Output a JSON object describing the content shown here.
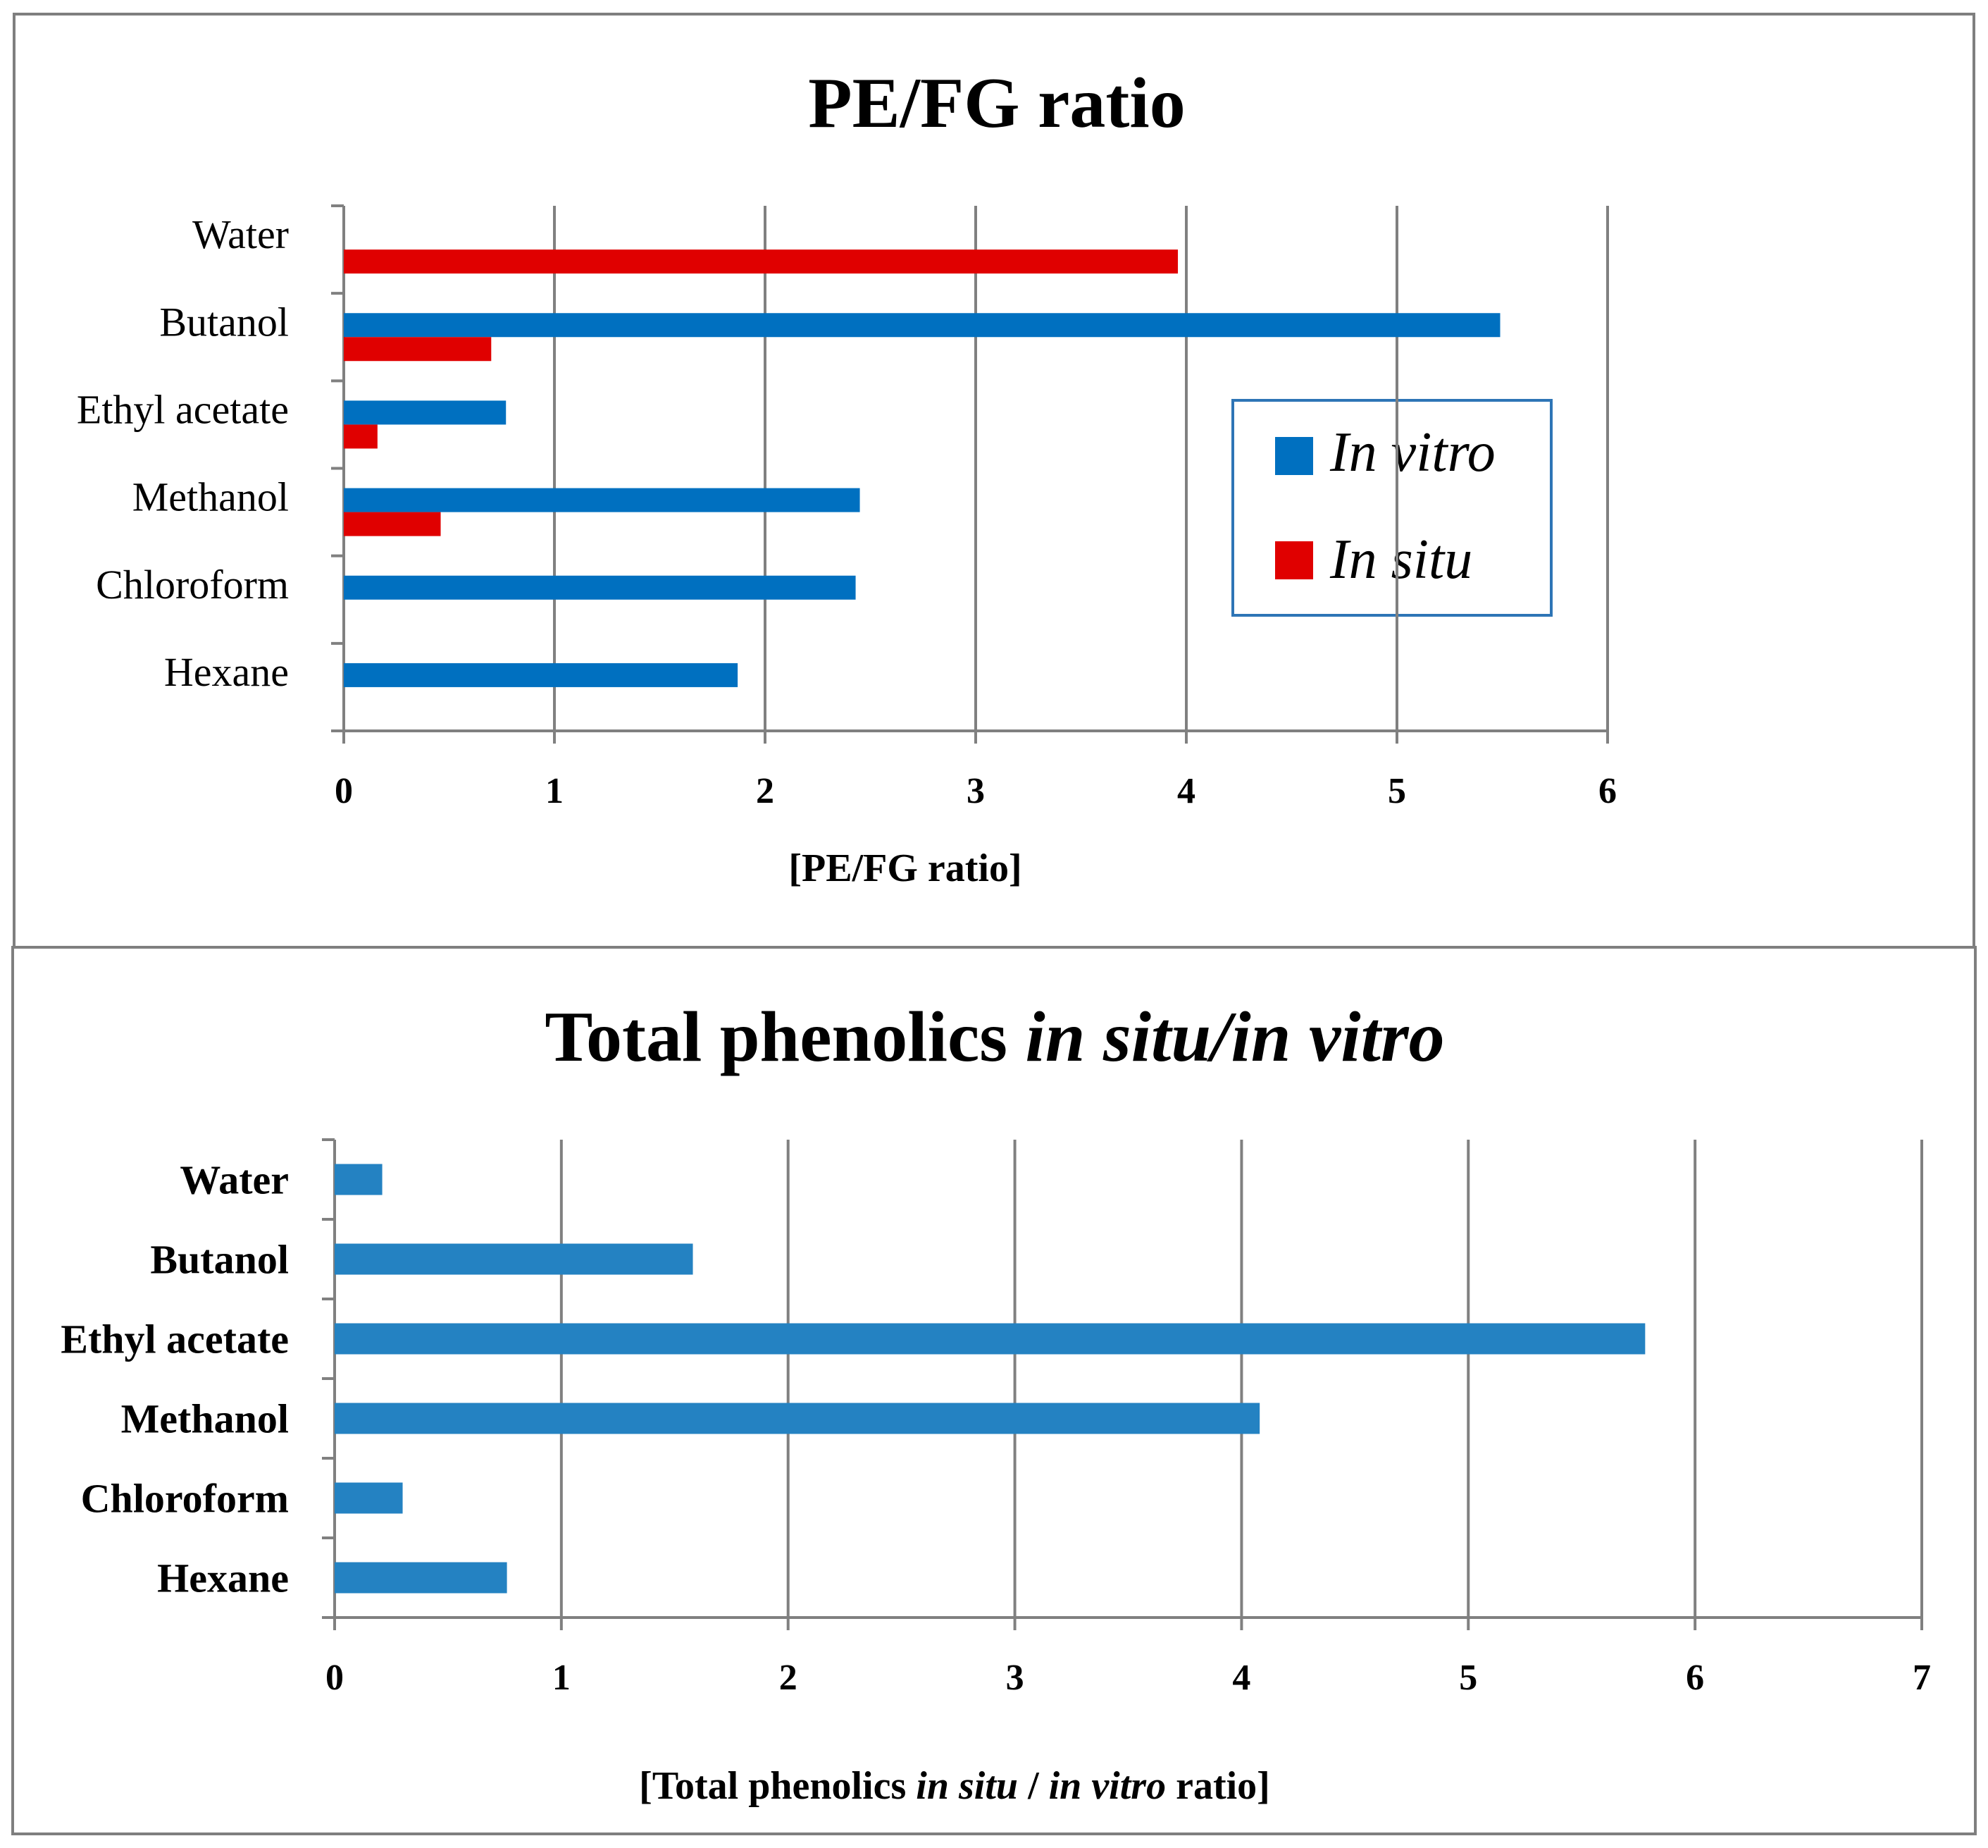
{
  "chart_data": [
    {
      "type": "bar",
      "orientation": "horizontal",
      "title": "PE/FG ratio",
      "xlabel": "[PE/FG ratio]",
      "ylabel": "",
      "xlim": [
        0,
        6
      ],
      "xticks": [
        "0",
        "1",
        "2",
        "3",
        "4",
        "5",
        "6"
      ],
      "categories": [
        "Water",
        "Butanol",
        "Ethyl acetate",
        "Methanol",
        "Chloroform",
        "Hexane"
      ],
      "series": [
        {
          "name": "In vitro",
          "color": "#0070c0",
          "values": [
            0,
            5.49,
            0.77,
            2.45,
            2.43,
            1.87
          ]
        },
        {
          "name": "In situ",
          "color": "#e00000",
          "values": [
            3.96,
            0.7,
            0.16,
            0.46,
            0,
            0
          ]
        }
      ],
      "legend": {
        "position": "right",
        "entries": [
          "In vitro",
          "In situ"
        ]
      },
      "grid": true
    },
    {
      "type": "bar",
      "orientation": "horizontal",
      "title_parts": [
        "Total phenolics ",
        "in situ/in vitro"
      ],
      "xlabel_parts": [
        "[Total phenolics ",
        "in situ",
        " / ",
        "in vitro",
        " ratio]"
      ],
      "ylabel": "",
      "xlim": [
        0,
        7
      ],
      "xticks": [
        "0",
        "1",
        "2",
        "3",
        "4",
        "5",
        "6",
        "7"
      ],
      "categories": [
        "Water",
        "Butanol",
        "Ethyl acetate",
        "Methanol",
        "Chloroform",
        "Hexane"
      ],
      "series": [
        {
          "name": "Total phenolics in situ/in vitro",
          "color": "#2482c2",
          "values": [
            0.21,
            1.58,
            5.78,
            4.08,
            0.3,
            0.76
          ]
        }
      ],
      "grid": true
    }
  ]
}
